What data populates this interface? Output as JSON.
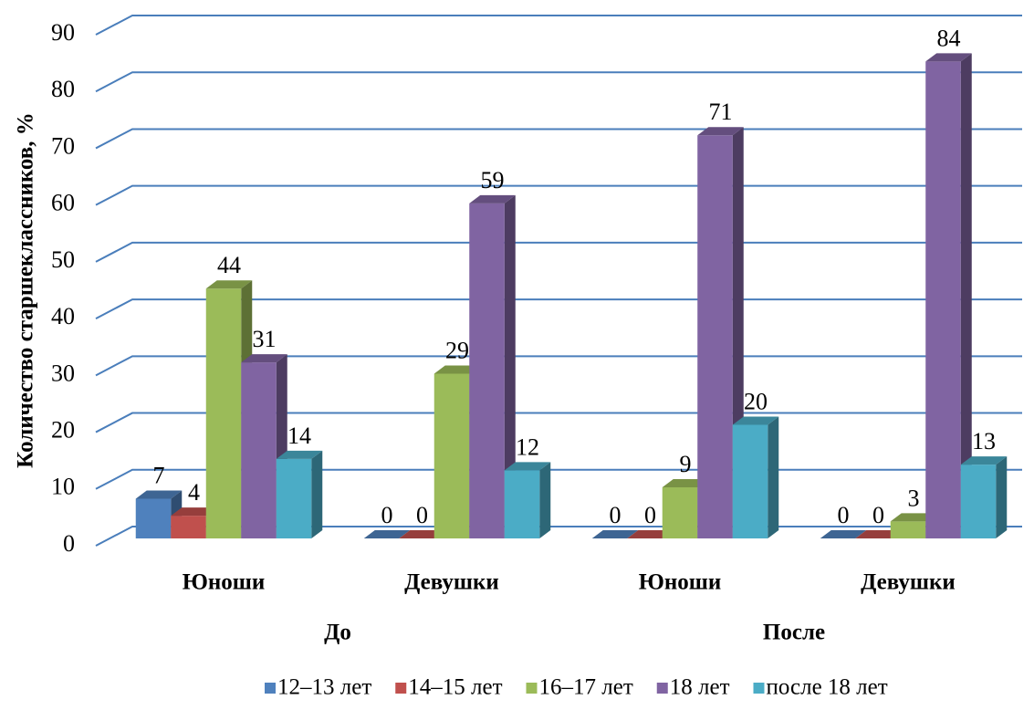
{
  "chart_data": {
    "type": "bar3d",
    "y_label": "Количество старшеклассников, %",
    "categories": [
      "Юноши",
      "Девушки",
      "Юноши",
      "Девушки"
    ],
    "groups": [
      "До",
      "После"
    ],
    "series": [
      {
        "name": "12–13 лет",
        "color": "#4f81bd",
        "values": [
          7,
          0,
          0,
          0
        ]
      },
      {
        "name": "14–15 лет",
        "color": "#c0504d",
        "values": [
          4,
          0,
          0,
          0
        ]
      },
      {
        "name": "16–17 лет",
        "color": "#9bbb59",
        "values": [
          44,
          29,
          9,
          3
        ]
      },
      {
        "name": "18 лет",
        "color": "#8064a2",
        "values": [
          31,
          59,
          71,
          84
        ]
      },
      {
        "name": "после 18 лет",
        "color": "#4bacc6",
        "values": [
          14,
          12,
          20,
          13
        ]
      }
    ],
    "ylim": [
      0,
      90
    ],
    "yticks": [
      0,
      10,
      20,
      30,
      40,
      50,
      60,
      70,
      80,
      90
    ],
    "grid": true,
    "grid_color": "#4a7ebb",
    "legend": "bottom"
  }
}
